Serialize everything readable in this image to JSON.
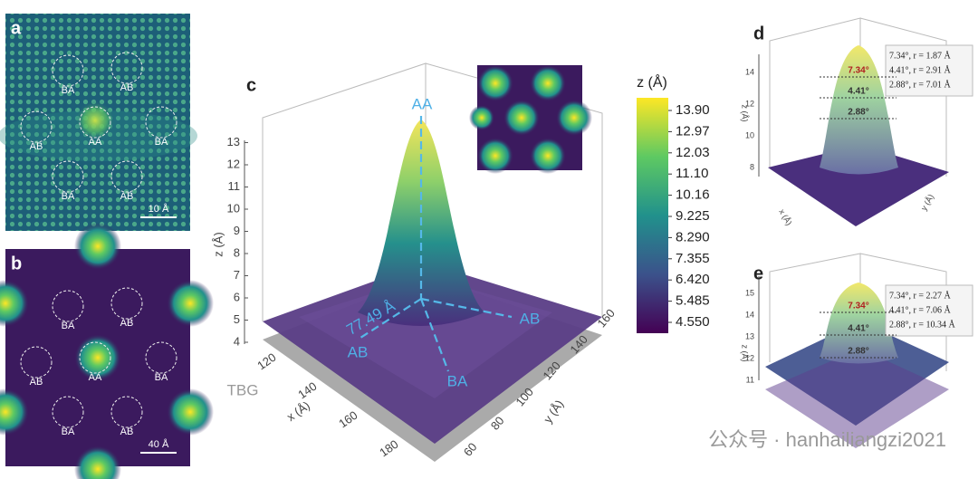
{
  "panels": {
    "a": {
      "label": "a",
      "sites": [
        "BA",
        "AB",
        "AB",
        "AA",
        "BA",
        "BA",
        "AB"
      ],
      "scale_bar": "10 Å"
    },
    "b": {
      "label": "b",
      "sites": [
        "BA",
        "AB",
        "AB",
        "AA",
        "BA",
        "BA",
        "AB"
      ],
      "scale_bar": "40 Å"
    },
    "c": {
      "label": "c",
      "z_ticks": [
        "4",
        "5",
        "6",
        "7",
        "8",
        "9",
        "10",
        "11",
        "12",
        "13"
      ],
      "z_axis_label": "z (Å)",
      "x_ticks": [
        "120",
        "140",
        "160",
        "180"
      ],
      "x_axis_label": "x (Å)",
      "y_ticks": [
        "60",
        "80",
        "100",
        "120",
        "140",
        "160"
      ],
      "y_axis_label": "y (Å)",
      "annotations": {
        "aa": "AA",
        "distance": "77.49 Å",
        "ab_left": "AB",
        "ab_right": "AB",
        "ba": "BA",
        "tbg": "TBG"
      },
      "colorbar": {
        "title": "z (Å)",
        "ticks": [
          "13.90",
          "12.97",
          "12.03",
          "11.10",
          "10.16",
          "9.225",
          "8.290",
          "7.355",
          "6.420",
          "5.485",
          "4.550"
        ]
      }
    },
    "d": {
      "label": "d",
      "legend": [
        "7.34°, r = 1.87 Å",
        "4.41°, r = 2.91 Å",
        "2.88°, r = 7.01 Å"
      ],
      "markers": [
        "7.34°",
        "4.41°",
        "2.88°"
      ],
      "z_ticks": [
        "8",
        "10",
        "12",
        "14"
      ],
      "z_axis_label": "z (Å)",
      "x_axis_label": "x (Å)",
      "y_axis_label": "y (Å)"
    },
    "e": {
      "label": "e",
      "legend": [
        "7.34°, r = 2.27 Å",
        "4.41°, r = 7.06 Å",
        "2.88°, r = 10.34 Å"
      ],
      "markers": [
        "7.34°",
        "4.41°",
        "2.88°"
      ],
      "z_ticks": [
        "11",
        "12",
        "13",
        "14",
        "15"
      ],
      "z_axis_label": "z (Å)"
    }
  },
  "watermark": "公众号 · hanhailiangzi2021"
}
